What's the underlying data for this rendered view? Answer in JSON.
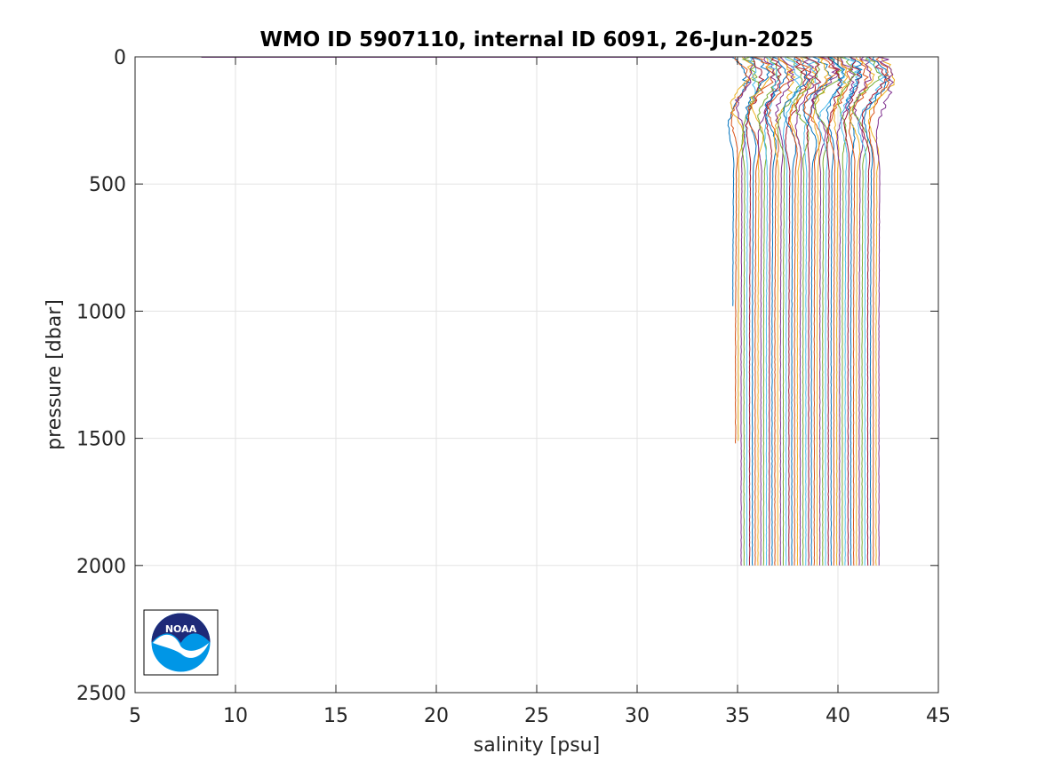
{
  "chart_data": {
    "type": "line",
    "title": "WMO ID 5907110, internal ID 6091, 26-Jun-2025",
    "xlabel": "salinity [psu]",
    "ylabel": "pressure [dbar]",
    "xlim": [
      5,
      45
    ],
    "ylim": [
      0,
      2500
    ],
    "y_reversed": true,
    "grid": true,
    "xticks": [
      5,
      10,
      15,
      20,
      25,
      30,
      35,
      40,
      45
    ],
    "yticks": [
      0,
      500,
      1000,
      1500,
      2000,
      2500
    ],
    "xtick_labels": [
      "5",
      "10",
      "15",
      "20",
      "25",
      "30",
      "35",
      "40",
      "45"
    ],
    "ytick_labels": [
      "0",
      "500",
      "1000",
      "1500",
      "2000",
      "2500"
    ],
    "offset_profiles": {
      "count": 53,
      "base_salinity_at_depth": 34.8,
      "offset_step": 0.14,
      "max_pressure_values": [
        980,
        1520,
        1510,
        2000,
        2000,
        2000,
        2000,
        2000,
        2000,
        2000,
        2000,
        2000,
        2000,
        2000,
        2000,
        2000,
        2000,
        2000,
        2000,
        2000,
        2000,
        2000,
        2000,
        2000,
        2000,
        2000,
        2000,
        2000,
        2000,
        2000,
        2000,
        2000,
        2000,
        2000,
        2000,
        2000,
        2000,
        2000,
        2000,
        2000,
        2000,
        2000,
        2000,
        2000,
        2000,
        2000,
        2000,
        2000,
        2000,
        2000,
        2000,
        2000,
        2000
      ],
      "surface_spike": {
        "salinity_min": 8.3,
        "pressure": 0
      }
    },
    "series_colors": [
      "#0072BD",
      "#D95319",
      "#EDB120",
      "#7E2F8E",
      "#77AC30",
      "#4DBEEE",
      "#A2142F"
    ]
  },
  "logo": {
    "text": "NOAA",
    "name": "noaa-logo"
  }
}
